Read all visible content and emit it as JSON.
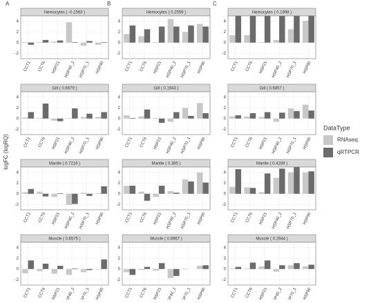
{
  "panel_labels": [
    "A",
    "B",
    "C"
  ],
  "ylabel": "logFC (logRQ)",
  "legend_title": "DataType",
  "chart_data": [
    {
      "type": "bar",
      "title": "Hemocytes ( -0.1563 )",
      "categories": [
        "CCT1",
        "CCT6",
        "HSP21",
        "HSP40_2",
        "HSP70_1",
        "HSP90"
      ],
      "ylim": [
        -3,
        5
      ],
      "yticks": [
        -2,
        0,
        2,
        4
      ],
      "grid": true,
      "series": [
        {
          "name": "RNAseq",
          "color": "#c8c8c8",
          "values": [
            0.1,
            0.1,
            0.2,
            3.8,
            -0.6,
            -0.4
          ]
        },
        {
          "name": "qRTPCR",
          "color": "#6b6b6b",
          "values": [
            -0.4,
            0.5,
            0.4,
            0.1,
            0.3,
            0.1
          ]
        }
      ]
    },
    {
      "type": "bar",
      "title": "Gill ( 0.6679 )",
      "categories": [
        "CCT1",
        "CCT6",
        "HSP21",
        "HSP40_2",
        "HSP70_1",
        "HSP90"
      ],
      "ylim": [
        -3,
        5
      ],
      "yticks": [
        -2,
        0,
        2,
        4
      ],
      "grid": true,
      "series": [
        {
          "name": "RNAseq",
          "color": "#c8c8c8",
          "values": [
            0.2,
            0.1,
            -0.4,
            0.1,
            0.3,
            0.3
          ]
        },
        {
          "name": "qRTPCR",
          "color": "#6b6b6b",
          "values": [
            1.2,
            2.8,
            -0.5,
            1.9,
            0.9,
            1.2
          ]
        }
      ]
    },
    {
      "type": "bar",
      "title": "Mantle ( 0.7216 )",
      "categories": [
        "CCT1",
        "CCT6",
        "HSP21",
        "HSP40_2",
        "HSP70_1",
        "HSP90"
      ],
      "ylim": [
        -3,
        5
      ],
      "yticks": [
        -2,
        0,
        2,
        4
      ],
      "grid": true,
      "series": [
        {
          "name": "RNAseq",
          "color": "#c8c8c8",
          "values": [
            0.3,
            0.4,
            -0.6,
            -2.1,
            0.2,
            0.1
          ]
        },
        {
          "name": "qRTPCR",
          "color": "#6b6b6b",
          "values": [
            0.9,
            -0.5,
            0.1,
            -1.9,
            -0.4,
            1.4
          ]
        }
      ]
    },
    {
      "type": "bar",
      "title": "Muscle ( 0.6575 )",
      "categories": [
        "CCT1",
        "CCT6",
        "HSP21",
        "HSP40_2",
        "HSP70_1",
        "HSP90"
      ],
      "ylim": [
        -3,
        5
      ],
      "yticks": [
        -2,
        0,
        2,
        4
      ],
      "grid": true,
      "series": [
        {
          "name": "RNAseq",
          "color": "#c8c8c8",
          "values": [
            -0.8,
            -0.4,
            -0.9,
            -1.1,
            -0.6,
            -0.1
          ]
        },
        {
          "name": "qRTPCR",
          "color": "#6b6b6b",
          "values": [
            1.6,
            1.0,
            0.6,
            0.1,
            -0.2,
            1.8
          ]
        }
      ]
    },
    {
      "type": "bar",
      "title": "Hemocytes ( 0.2559 )",
      "categories": [
        "CCT1",
        "CCT6",
        "HSP21",
        "HSP40_2",
        "HSP70_1",
        "HSP90"
      ],
      "ylim": [
        -3,
        5
      ],
      "yticks": [
        -2,
        0,
        2,
        4
      ],
      "grid": true,
      "series": [
        {
          "name": "RNAseq",
          "color": "#c8c8c8",
          "values": [
            1.6,
            1.2,
            0.1,
            4.4,
            2.0,
            3.5
          ]
        },
        {
          "name": "qRTPCR",
          "color": "#6b6b6b",
          "values": [
            3.2,
            2.5,
            3.0,
            3.0,
            3.2,
            3.0
          ]
        }
      ]
    },
    {
      "type": "bar",
      "title": "Gill ( 0.1943 )",
      "categories": [
        "CCT1",
        "CCT6",
        "HSP21",
        "HSP40_2",
        "HSP70_1",
        "HSP90"
      ],
      "ylim": [
        -3,
        5
      ],
      "yticks": [
        -2,
        0,
        2,
        4
      ],
      "grid": true,
      "series": [
        {
          "name": "RNAseq",
          "color": "#c8c8c8",
          "values": [
            0.6,
            0.4,
            0.1,
            -0.6,
            2.0,
            2.9
          ]
        },
        {
          "name": "qRTPCR",
          "color": "#6b6b6b",
          "values": [
            0.1,
            1.7,
            -0.8,
            1.2,
            0.5,
            1.0
          ]
        }
      ]
    },
    {
      "type": "bar",
      "title": "Mantle ( 0.385 )",
      "categories": [
        "CCT1",
        "CCT6",
        "HSP21",
        "HSP40_2",
        "HSP70_1",
        "HSP90"
      ],
      "ylim": [
        -3,
        5
      ],
      "yticks": [
        -2,
        0,
        2,
        4
      ],
      "grid": true,
      "series": [
        {
          "name": "RNAseq",
          "color": "#c8c8c8",
          "values": [
            1.5,
            0.4,
            -0.6,
            0.5,
            2.7,
            4.0
          ]
        },
        {
          "name": "qRTPCR",
          "color": "#6b6b6b",
          "values": [
            1.5,
            -1.3,
            1.5,
            0.2,
            2.3,
            2.1
          ]
        }
      ]
    },
    {
      "type": "bar",
      "title": "Muscle ( 0.6967 )",
      "categories": [
        "CCT1",
        "CCT6",
        "HSP21",
        "HSP40_2",
        "HSP70_1",
        "HSP90"
      ],
      "ylim": [
        -3,
        5
      ],
      "yticks": [
        -2,
        0,
        2,
        4
      ],
      "grid": true,
      "series": [
        {
          "name": "RNAseq",
          "color": "#c8c8c8",
          "values": [
            -0.6,
            -0.2,
            -0.3,
            -1.7,
            -0.1,
            0.6
          ]
        },
        {
          "name": "qRTPCR",
          "color": "#6b6b6b",
          "values": [
            -1.1,
            0.4,
            1.1,
            -1.3,
            0.0,
            0.7
          ]
        }
      ]
    },
    {
      "type": "bar",
      "title": "Hemocytes ( 0.1998 )",
      "categories": [
        "CCT1",
        "CCT6",
        "HSP21",
        "HSP40_2",
        "HSP70_1",
        "HSP90"
      ],
      "ylim": [
        -3,
        5
      ],
      "yticks": [
        -2,
        0,
        2,
        4
      ],
      "grid": true,
      "series": [
        {
          "name": "RNAseq",
          "color": "#c8c8c8",
          "values": [
            1.4,
            1.4,
            0.1,
            0.5,
            2.5,
            4.1
          ]
        },
        {
          "name": "qRTPCR",
          "color": "#6b6b6b",
          "values": [
            5,
            5,
            5,
            5,
            5,
            5
          ]
        }
      ]
    },
    {
      "type": "bar",
      "title": "Gill ( 0.6857 )",
      "categories": [
        "CCT1",
        "CCT6",
        "HSP21",
        "HSP40_2",
        "HSP70_1",
        "HSP90"
      ],
      "ylim": [
        -3,
        5
      ],
      "yticks": [
        -2,
        0,
        2,
        4
      ],
      "grid": true,
      "series": [
        {
          "name": "RNAseq",
          "color": "#c8c8c8",
          "values": [
            0.4,
            0.4,
            0.3,
            -0.6,
            1.9,
            2.6
          ]
        },
        {
          "name": "qRTPCR",
          "color": "#6b6b6b",
          "values": [
            0.6,
            1.0,
            1.2,
            1.1,
            1.4,
            1.5
          ]
        }
      ]
    },
    {
      "type": "bar",
      "title": "Mantle ( 0.4289 )",
      "categories": [
        "CCT1",
        "CCT6",
        "HSP21",
        "HSP40_2",
        "HSP70_1",
        "HSP90"
      ],
      "ylim": [
        -3,
        5
      ],
      "yticks": [
        -2,
        0,
        2,
        4
      ],
      "grid": true,
      "series": [
        {
          "name": "RNAseq",
          "color": "#c8c8c8",
          "values": [
            1.3,
            1.2,
            0.3,
            3.0,
            4.0,
            4.0
          ]
        },
        {
          "name": "qRTPCR",
          "color": "#6b6b6b",
          "values": [
            4.6,
            1.1,
            3.8,
            4.7,
            5.0,
            4.2
          ]
        }
      ]
    },
    {
      "type": "bar",
      "title": "Muscle ( 0.2944 )",
      "categories": [
        "CCT1",
        "CCT6",
        "HSP21",
        "HSP40_2",
        "HSP70_1",
        "HSP90"
      ],
      "ylim": [
        -3,
        5
      ],
      "yticks": [
        -2,
        0,
        2,
        4
      ],
      "grid": true,
      "series": [
        {
          "name": "RNAseq",
          "color": "#c8c8c8",
          "values": [
            0.1,
            0.1,
            0.5,
            -0.5,
            0.7,
            0.5
          ]
        },
        {
          "name": "qRTPCR",
          "color": "#6b6b6b",
          "values": [
            0.4,
            1.2,
            1.6,
            0.7,
            1.1,
            0.8
          ]
        }
      ]
    }
  ]
}
